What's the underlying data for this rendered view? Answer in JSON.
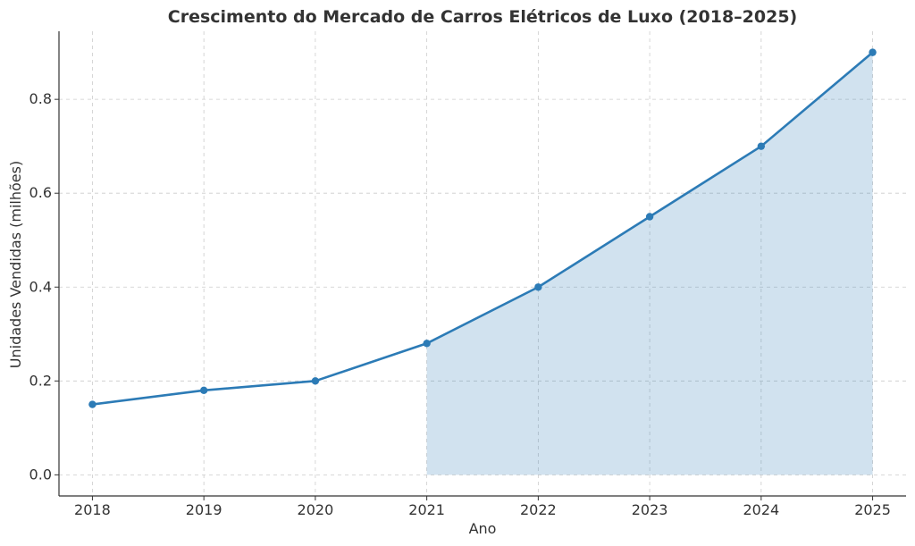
{
  "chart_data": {
    "type": "line",
    "title": "Crescimento do Mercado de Carros Elétricos de Luxo (2018–2025)",
    "xlabel": "Ano",
    "ylabel": "Unidades Vendidas (milhões)",
    "x": [
      "2018",
      "2019",
      "2020",
      "2021",
      "2022",
      "2023",
      "2024",
      "2025"
    ],
    "series": [
      {
        "values": [
          0.15,
          0.18,
          0.2,
          0.28,
          0.4,
          0.55,
          0.7,
          0.9
        ],
        "color": "#2c7bb6"
      }
    ],
    "shaded_region": {
      "from": "2021",
      "to": "2025",
      "color": "#2c7bb6",
      "opacity": 0.22
    },
    "yticks": [
      "0.0",
      "0.2",
      "0.4",
      "0.6",
      "0.8"
    ],
    "ylim": [
      -0.045,
      0.945
    ],
    "grid": true
  }
}
